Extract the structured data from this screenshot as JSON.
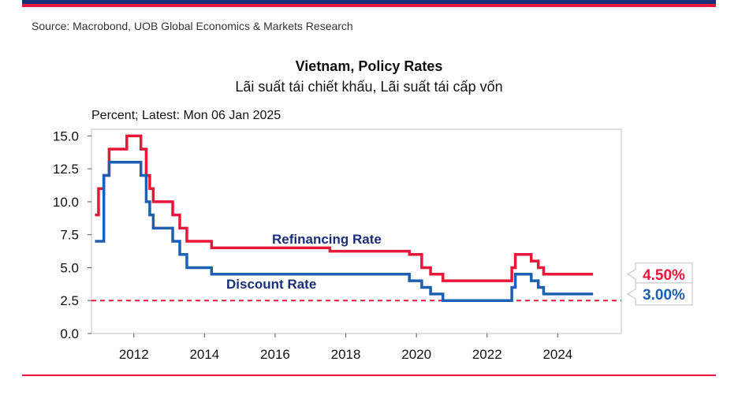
{
  "source": "Source: Macrobond, UOB Global Economics & Markets Research",
  "colors": {
    "refinancing": "#e8173a",
    "discount": "#1e5fb0",
    "threshold": "#e8173a",
    "navy": "#1a2f7a"
  },
  "chart_data": {
    "type": "line",
    "title": "Vietnam, Policy Rates",
    "subtitle": "Lãi suất tái chiết khấu, Lãi suất tái cấp vốn",
    "unit_label": "Percent; Latest: Mon 06 Jan 2025",
    "xlim": [
      2010.8,
      2025.8
    ],
    "ylim": [
      0,
      15.5
    ],
    "x_ticks": [
      "2012",
      "2014",
      "2016",
      "2018",
      "2020",
      "2022",
      "2024"
    ],
    "y_ticks": [
      "15.0",
      "12.5",
      "10.0",
      "7.5",
      "5.0",
      "2.5",
      "0.0"
    ],
    "threshold": 2.5,
    "series": [
      {
        "name": "Refinancing Rate",
        "latest_label": "4.50%",
        "points": [
          [
            2010.9,
            9
          ],
          [
            2011.0,
            11
          ],
          [
            2011.15,
            12
          ],
          [
            2011.3,
            14
          ],
          [
            2011.8,
            15
          ],
          [
            2012.2,
            14
          ],
          [
            2012.35,
            12
          ],
          [
            2012.45,
            11
          ],
          [
            2012.55,
            10
          ],
          [
            2013.1,
            9
          ],
          [
            2013.3,
            8
          ],
          [
            2013.5,
            7
          ],
          [
            2014.2,
            6.5
          ],
          [
            2017.55,
            6.25
          ],
          [
            2019.8,
            6
          ],
          [
            2020.15,
            5
          ],
          [
            2020.4,
            4.5
          ],
          [
            2020.75,
            4
          ],
          [
            2022.7,
            5
          ],
          [
            2022.8,
            6
          ],
          [
            2023.25,
            5.5
          ],
          [
            2023.45,
            5
          ],
          [
            2023.6,
            4.5
          ],
          [
            2025.0,
            4.5
          ]
        ]
      },
      {
        "name": "Discount Rate",
        "latest_label": "3.00%",
        "points": [
          [
            2010.9,
            7
          ],
          [
            2011.15,
            12
          ],
          [
            2011.3,
            13
          ],
          [
            2012.2,
            12
          ],
          [
            2012.35,
            10
          ],
          [
            2012.45,
            9
          ],
          [
            2012.55,
            8
          ],
          [
            2013.1,
            7
          ],
          [
            2013.3,
            6
          ],
          [
            2013.5,
            5
          ],
          [
            2014.2,
            4.5
          ],
          [
            2019.8,
            4
          ],
          [
            2020.15,
            3.5
          ],
          [
            2020.4,
            3
          ],
          [
            2020.75,
            2.5
          ],
          [
            2022.7,
            3.5
          ],
          [
            2022.8,
            4.5
          ],
          [
            2023.25,
            4
          ],
          [
            2023.45,
            3.5
          ],
          [
            2023.6,
            3
          ],
          [
            2025.0,
            3
          ]
        ]
      }
    ]
  }
}
